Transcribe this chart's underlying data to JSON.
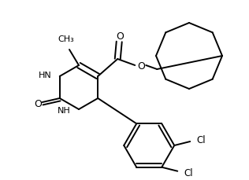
{
  "bg_color": "#ffffff",
  "line_color": "#000000",
  "line_width": 1.4,
  "figsize": [
    3.16,
    2.3
  ],
  "dpi": 100,
  "xlim": [
    0,
    316
  ],
  "ylim": [
    0,
    230
  ]
}
